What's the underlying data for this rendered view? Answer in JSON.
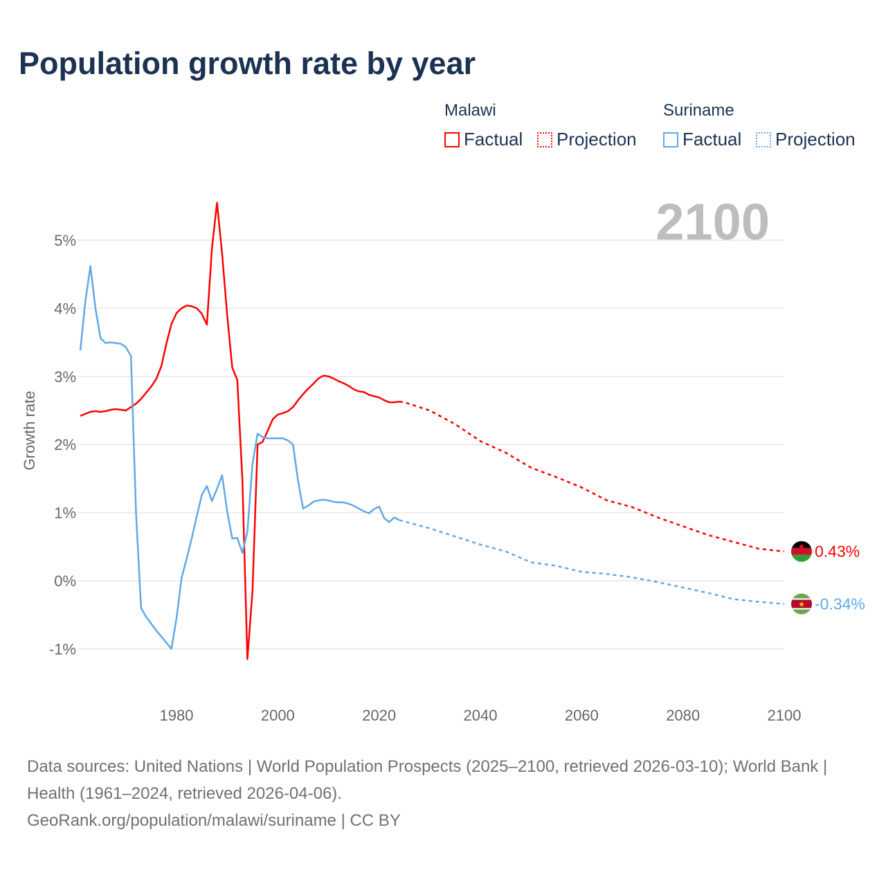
{
  "title": "Population growth rate by year",
  "legend": {
    "groups": [
      {
        "country": "Malawi",
        "factual": "Factual",
        "projection": "Projection",
        "color": "#ff0000"
      },
      {
        "country": "Suriname",
        "factual": "Factual",
        "projection": "Projection",
        "color": "#5fa8e8"
      }
    ]
  },
  "current_year_label": "2100",
  "end_labels": {
    "malawi": "0.43%",
    "suriname": "-0.34%"
  },
  "footer": {
    "sources": "Data sources: United Nations | World Population Prospects (2025–2100, retrieved 2026-03-10); World Bank | Health (1961–2024, retrieved 2026-04-06).",
    "credit": "GeoRank.org/population/malawi/suriname | CC BY"
  },
  "chart_data": {
    "type": "line",
    "title": "Population growth rate by year",
    "xlabel": "",
    "ylabel": "Growth rate",
    "xlim": [
      1961,
      2100
    ],
    "ylim": [
      -1.5,
      5.6
    ],
    "x_ticks": [
      1980,
      2000,
      2020,
      2040,
      2060,
      2080,
      2100
    ],
    "x_tick_labels": [
      "1980",
      "2000",
      "2020",
      "2040",
      "2060",
      "2080",
      "2100"
    ],
    "y_ticks": [
      -1,
      0,
      1,
      2,
      3,
      4,
      5
    ],
    "y_tick_labels": [
      "-1%",
      "0%",
      "1%",
      "2%",
      "3%",
      "4%",
      "5%"
    ],
    "grid": true,
    "legend_position": "top-right",
    "series": [
      {
        "name": "Malawi Factual",
        "color": "#ff0000",
        "dashed": false,
        "x": [
          1961,
          1962,
          1963,
          1964,
          1965,
          1966,
          1967,
          1968,
          1969,
          1970,
          1971,
          1972,
          1973,
          1974,
          1975,
          1976,
          1977,
          1978,
          1979,
          1980,
          1981,
          1982,
          1983,
          1984,
          1985,
          1986,
          1987,
          1988,
          1989,
          1990,
          1991,
          1992,
          1993,
          1994,
          1995,
          1996,
          1997,
          1998,
          1999,
          2000,
          2001,
          2002,
          2003,
          2004,
          2005,
          2006,
          2007,
          2008,
          2009,
          2010,
          2011,
          2012,
          2013,
          2014,
          2015,
          2016,
          2017,
          2018,
          2019,
          2020,
          2021,
          2022,
          2023,
          2024
        ],
        "y": [
          2.42,
          2.45,
          2.48,
          2.49,
          2.48,
          2.49,
          2.51,
          2.52,
          2.51,
          2.5,
          2.55,
          2.6,
          2.67,
          2.76,
          2.85,
          2.96,
          3.15,
          3.48,
          3.77,
          3.93,
          4.0,
          4.04,
          4.03,
          4.0,
          3.92,
          3.76,
          4.88,
          5.55,
          4.8,
          3.9,
          3.13,
          2.95,
          1.5,
          -1.15,
          -0.15,
          2.0,
          2.04,
          2.2,
          2.37,
          2.44,
          2.46,
          2.49,
          2.55,
          2.65,
          2.74,
          2.82,
          2.89,
          2.97,
          3.01,
          3.0,
          2.97,
          2.93,
          2.9,
          2.86,
          2.81,
          2.78,
          2.77,
          2.73,
          2.71,
          2.69,
          2.65,
          2.62,
          2.62,
          2.63
        ]
      },
      {
        "name": "Malawi Projection",
        "color": "#ff0000",
        "dashed": true,
        "x": [
          2024,
          2025,
          2030,
          2035,
          2040,
          2045,
          2050,
          2055,
          2060,
          2065,
          2070,
          2075,
          2080,
          2085,
          2090,
          2095,
          2100
        ],
        "y": [
          2.63,
          2.62,
          2.5,
          2.3,
          2.05,
          1.88,
          1.66,
          1.52,
          1.37,
          1.18,
          1.08,
          0.93,
          0.8,
          0.67,
          0.57,
          0.47,
          0.43
        ]
      },
      {
        "name": "Suriname Factual",
        "color": "#5fa8e8",
        "dashed": false,
        "x": [
          1961,
          1962,
          1963,
          1964,
          1965,
          1966,
          1967,
          1968,
          1969,
          1970,
          1971,
          1972,
          1973,
          1974,
          1975,
          1976,
          1977,
          1978,
          1979,
          1980,
          1981,
          1982,
          1983,
          1984,
          1985,
          1986,
          1987,
          1988,
          1989,
          1990,
          1991,
          1992,
          1993,
          1994,
          1995,
          1996,
          1997,
          1998,
          1999,
          2000,
          2001,
          2002,
          2003,
          2004,
          2005,
          2006,
          2007,
          2008,
          2009,
          2010,
          2011,
          2012,
          2013,
          2014,
          2015,
          2016,
          2017,
          2018,
          2019,
          2020,
          2021,
          2022,
          2023,
          2024
        ],
        "y": [
          3.38,
          4.1,
          4.62,
          4.0,
          3.56,
          3.49,
          3.5,
          3.49,
          3.48,
          3.43,
          3.3,
          1.0,
          -0.4,
          -0.53,
          -0.63,
          -0.73,
          -0.82,
          -0.91,
          -1.0,
          -0.55,
          0.04,
          0.32,
          0.62,
          0.95,
          1.26,
          1.39,
          1.17,
          1.35,
          1.55,
          1.02,
          0.62,
          0.63,
          0.41,
          0.72,
          1.72,
          2.16,
          2.11,
          2.09,
          2.09,
          2.09,
          2.09,
          2.06,
          2.0,
          1.47,
          1.06,
          1.1,
          1.16,
          1.18,
          1.19,
          1.18,
          1.16,
          1.15,
          1.15,
          1.13,
          1.1,
          1.06,
          1.02,
          0.99,
          1.05,
          1.09,
          0.92,
          0.86,
          0.93,
          0.89
        ]
      },
      {
        "name": "Suriname Projection",
        "color": "#5fa8e8",
        "dashed": true,
        "x": [
          2024,
          2025,
          2030,
          2035,
          2040,
          2045,
          2050,
          2055,
          2060,
          2065,
          2070,
          2075,
          2080,
          2085,
          2090,
          2095,
          2100
        ],
        "y": [
          0.89,
          0.87,
          0.77,
          0.65,
          0.53,
          0.43,
          0.27,
          0.22,
          0.13,
          0.1,
          0.05,
          -0.02,
          -0.1,
          -0.18,
          -0.27,
          -0.31,
          -0.34
        ]
      }
    ]
  }
}
